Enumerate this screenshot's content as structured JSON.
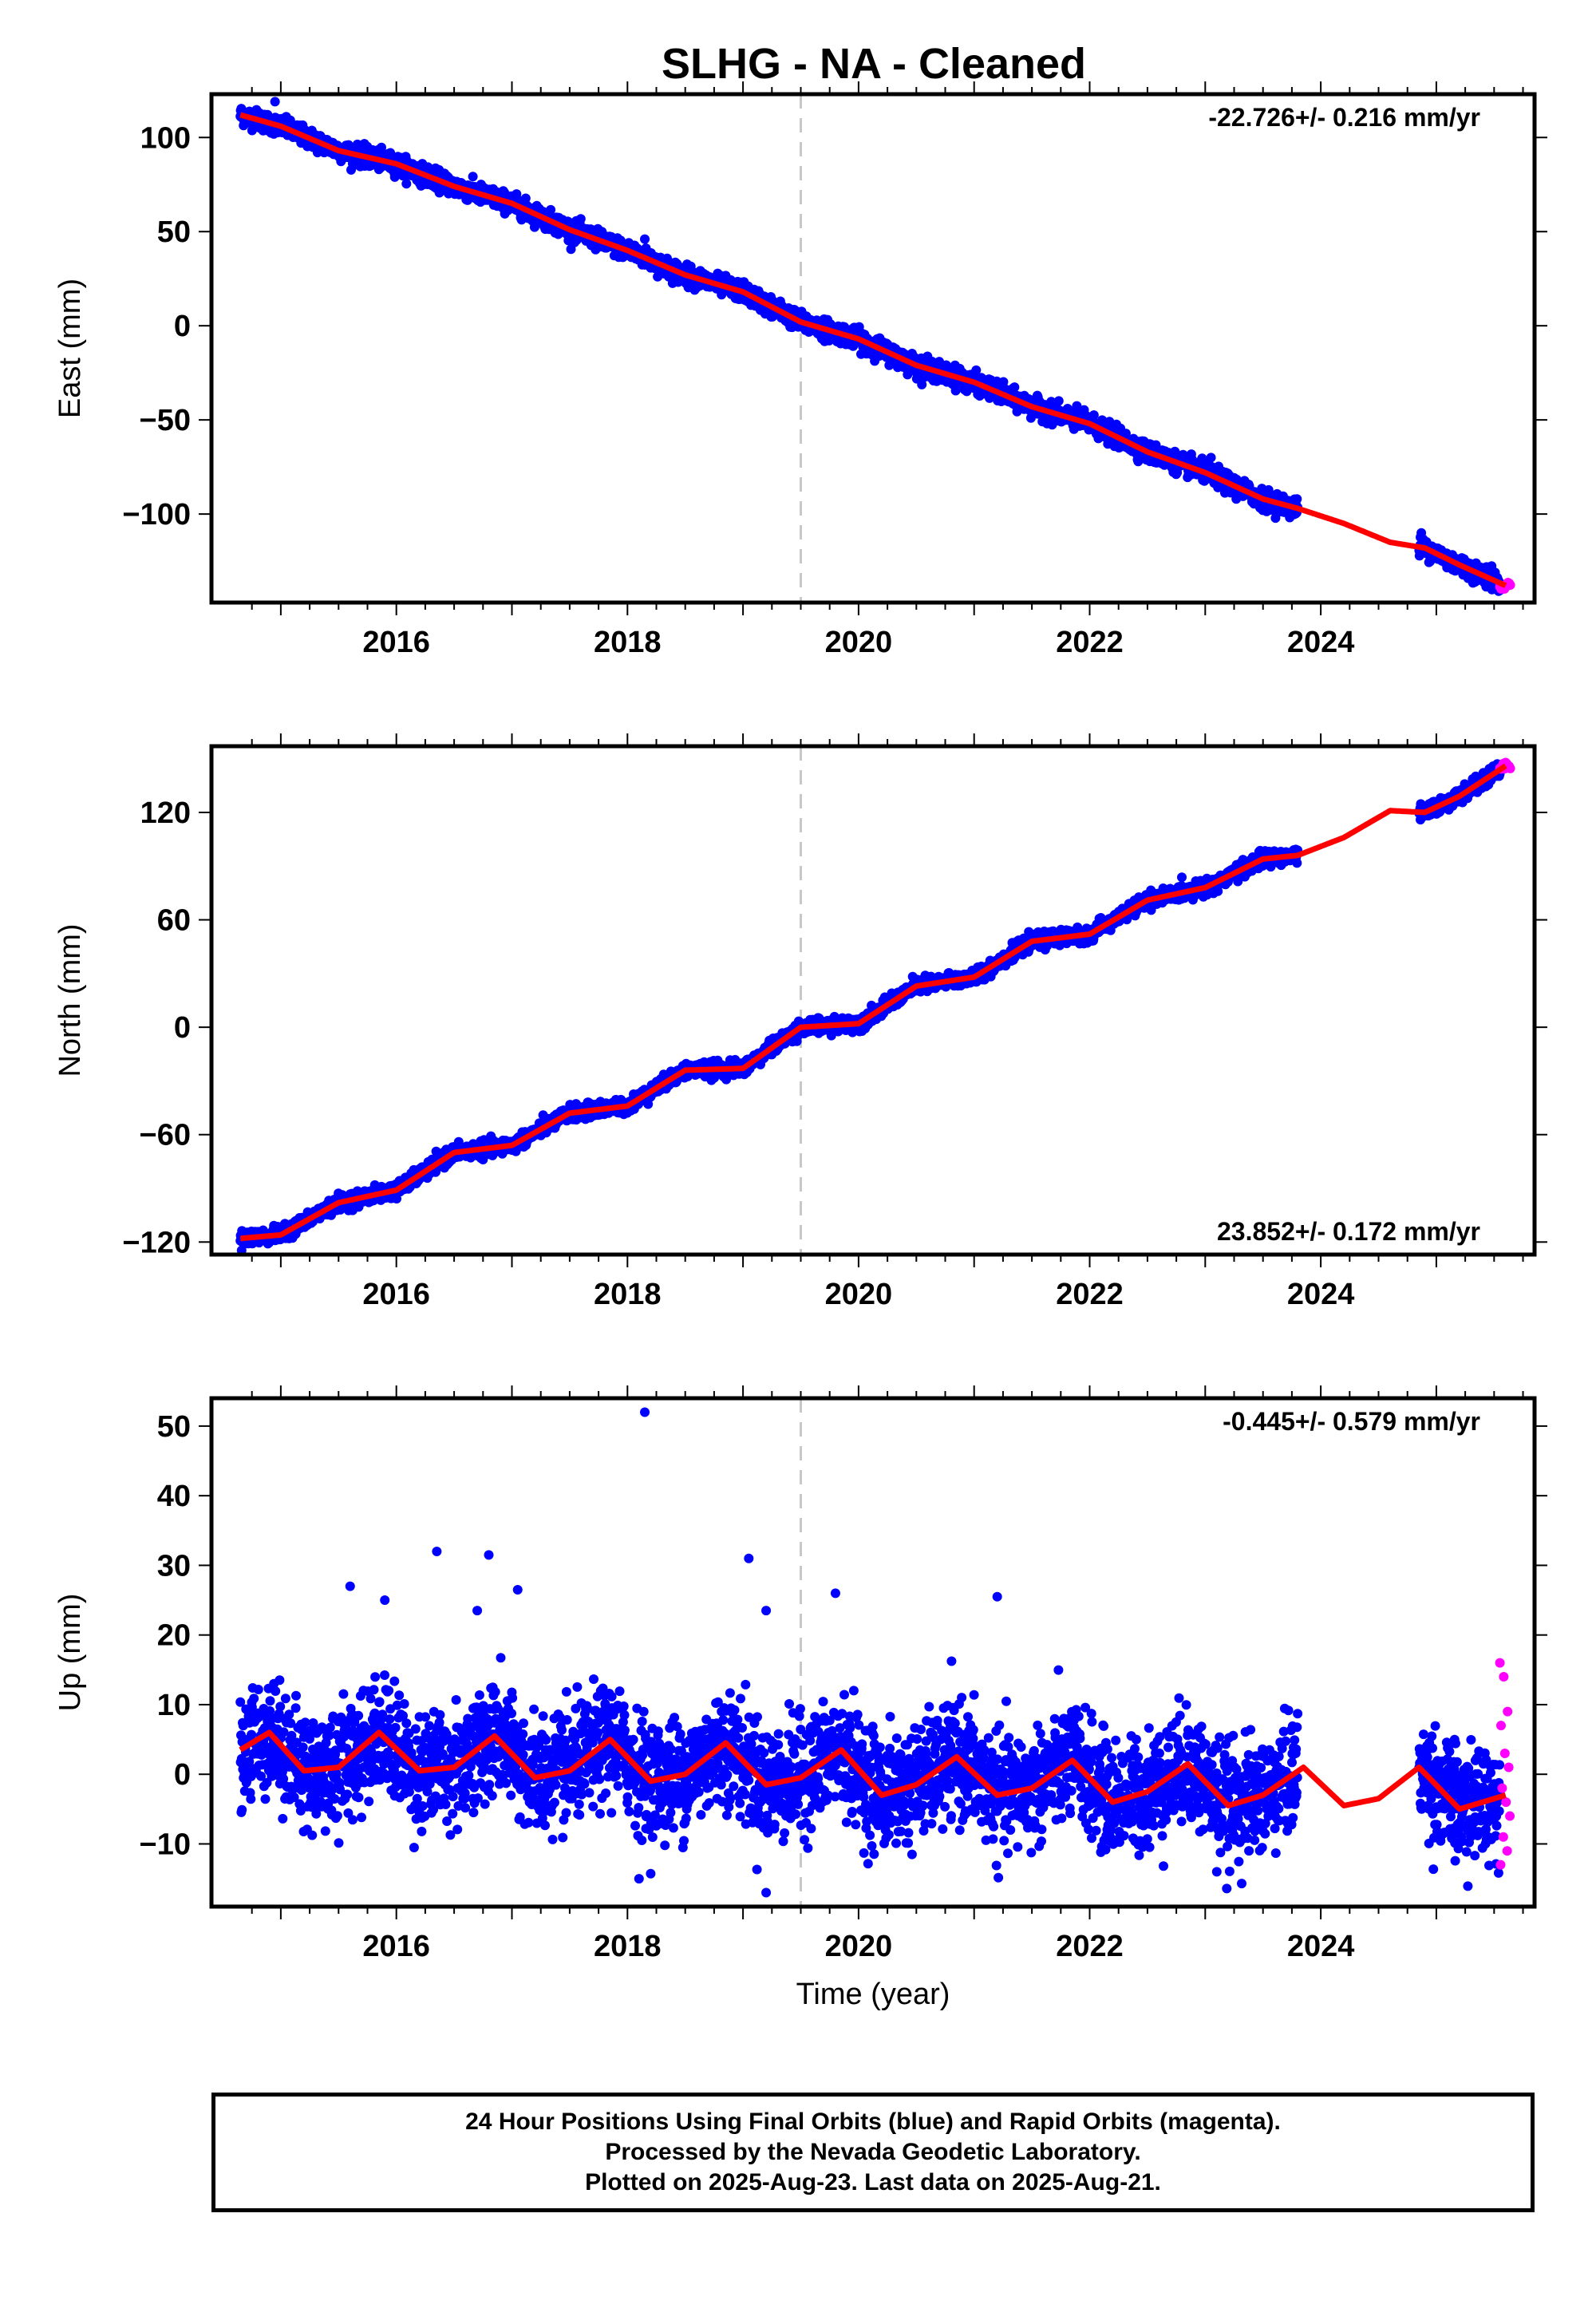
{
  "title": "SLHG  - NA - Cleaned",
  "colors": {
    "final_orbits": "#0000ff",
    "rapid_orbits": "#ff00ff",
    "model": "#ff0000",
    "event_line": "#c8c8c8",
    "frame": "#000000"
  },
  "chart_data": [
    {
      "type": "scatter",
      "panel": "east",
      "ylabel": "East (mm)",
      "xlabel": "",
      "rate_text": "-22.726+/- 0.216 mm/yr",
      "xlim": [
        2014.4,
        2025.85
      ],
      "ylim": [
        -147,
        123
      ],
      "xticks": [
        2016,
        2018,
        2020,
        2022,
        2024
      ],
      "xtick_labels": [
        "2016",
        "2018",
        "2020",
        "2022",
        "2024"
      ],
      "yticks": [
        100,
        50,
        0,
        -50,
        -100
      ],
      "ytick_labels": [
        "100",
        "50",
        "0",
        "−50",
        "−100"
      ],
      "event_line_x": 2019.5,
      "trend": {
        "rate": -22.726,
        "value_at_2019_5": 0
      },
      "seasonal": {
        "amplitude": 1.2,
        "peak_year_fraction": 0.3
      },
      "data_gap": [
        2023.8,
        2024.85
      ],
      "noise_sd": 2.5,
      "model_curve_x": [
        2014.65,
        2015.0,
        2015.5,
        2016.0,
        2016.5,
        2017.0,
        2017.5,
        2018.0,
        2018.5,
        2019.0,
        2019.5,
        2020.0,
        2020.5,
        2021.0,
        2021.5,
        2022.0,
        2022.5,
        2023.0,
        2023.5,
        2023.8,
        2024.2,
        2024.6,
        2024.9,
        2025.2,
        2025.6
      ],
      "model_curve_y": [
        112,
        106,
        93,
        86,
        74,
        65,
        51,
        40,
        27,
        18,
        2,
        -7,
        -21,
        -30,
        -43,
        -52,
        -67,
        -78,
        -92,
        -97,
        -105,
        -115,
        -118,
        -127,
        -138
      ],
      "rapid_orbits": {
        "x_start": 2025.55,
        "x_end": 2025.64,
        "y": -138
      },
      "outliers": [
        [
          2014.95,
          119
        ],
        [
          2018.15,
          46
        ],
        [
          2024.87,
          -110
        ],
        [
          2023.05,
          -70
        ]
      ]
    },
    {
      "type": "scatter",
      "panel": "north",
      "ylabel": "North (mm)",
      "xlabel": "",
      "rate_text": "23.852+/- 0.172 mm/yr",
      "xlim": [
        2014.4,
        2025.85
      ],
      "ylim": [
        -127,
        157
      ],
      "xticks": [
        2016,
        2018,
        2020,
        2022,
        2024
      ],
      "xtick_labels": [
        "2016",
        "2018",
        "2020",
        "2022",
        "2024"
      ],
      "yticks": [
        120,
        60,
        0,
        -60,
        -120
      ],
      "ytick_labels": [
        "120",
        "60",
        "0",
        "−60",
        "−120"
      ],
      "event_line_x": 2019.5,
      "trend": {
        "rate": 23.852,
        "value_at_2019_5": 0
      },
      "seasonal": {
        "amplitude": 3.0,
        "peak_year_fraction": 0.75
      },
      "data_gap": [
        2023.8,
        2024.85
      ],
      "noise_sd": 2.0,
      "model_curve_x": [
        2014.65,
        2015.0,
        2015.5,
        2016.0,
        2016.5,
        2017.0,
        2017.5,
        2018.0,
        2018.5,
        2019.0,
        2019.5,
        2020.0,
        2020.5,
        2021.0,
        2021.5,
        2022.0,
        2022.5,
        2023.0,
        2023.5,
        2023.8,
        2024.2,
        2024.6,
        2024.9,
        2025.2,
        2025.6
      ],
      "model_curve_y": [
        -118,
        -116,
        -98,
        -91,
        -70,
        -66,
        -48,
        -44,
        -24,
        -23,
        0,
        2,
        23,
        28,
        48,
        52,
        71,
        78,
        94,
        96,
        106,
        121,
        120,
        129,
        146
      ],
      "rapid_orbits": {
        "x_start": 2025.55,
        "x_end": 2025.64,
        "y": 146
      },
      "outliers": []
    },
    {
      "type": "scatter",
      "panel": "up",
      "ylabel": "Up (mm)",
      "xlabel": "Time (year)",
      "rate_text": "-0.445+/- 0.579 mm/yr",
      "xlim": [
        2014.4,
        2025.85
      ],
      "ylim": [
        -19,
        54
      ],
      "xticks": [
        2016,
        2018,
        2020,
        2022,
        2024
      ],
      "xtick_labels": [
        "2016",
        "2018",
        "2020",
        "2022",
        "2024"
      ],
      "yticks": [
        50,
        40,
        30,
        20,
        10,
        0,
        -10
      ],
      "ytick_labels": [
        "50",
        "40",
        "30",
        "20",
        "10",
        "0",
        "−10"
      ],
      "event_line_x": 2019.5,
      "trend": {
        "rate": -0.445,
        "value_at_2019_5": 0
      },
      "seasonal": {
        "amplitude": 3.5,
        "peak_year_fraction": 0.85
      },
      "data_gap": [
        2023.8,
        2024.85
      ],
      "noise_sd": 4.0,
      "model_curve_x": [
        2014.65,
        2014.9,
        2015.2,
        2015.5,
        2015.85,
        2016.2,
        2016.5,
        2016.85,
        2017.2,
        2017.5,
        2017.85,
        2018.2,
        2018.5,
        2018.85,
        2019.2,
        2019.5,
        2019.85,
        2020.2,
        2020.5,
        2020.85,
        2021.2,
        2021.5,
        2021.85,
        2022.2,
        2022.5,
        2022.85,
        2023.2,
        2023.5,
        2023.85,
        2024.2,
        2024.5,
        2024.85,
        2025.2,
        2025.6
      ],
      "model_curve_y": [
        3.5,
        6,
        0.5,
        1,
        6,
        0.5,
        1,
        5.5,
        -0.5,
        0.5,
        5,
        -1,
        0,
        4.5,
        -1.5,
        -0.5,
        3.5,
        -3,
        -1.5,
        2.5,
        -3,
        -2,
        2,
        -4,
        -2.5,
        1.5,
        -4.5,
        -3,
        1,
        -4.5,
        -3.5,
        1,
        -5,
        -3
      ],
      "rapid_orbits": {
        "x_start": 2025.55,
        "x_end": 2025.64,
        "values": [
          16,
          14,
          9,
          7,
          3,
          1,
          -2,
          -4,
          -6,
          -9,
          -11,
          -13
        ]
      },
      "outliers": [
        [
          2018.15,
          52
        ],
        [
          2016.35,
          32
        ],
        [
          2016.8,
          31.5
        ],
        [
          2019.05,
          31
        ],
        [
          2015.6,
          27
        ],
        [
          2017.05,
          26.5
        ],
        [
          2019.8,
          26
        ],
        [
          2021.2,
          25.5
        ],
        [
          2015.9,
          25
        ],
        [
          2016.7,
          23.5
        ],
        [
          2019.2,
          23.5
        ],
        [
          2018.1,
          -15
        ],
        [
          2019.2,
          -17
        ],
        [
          2023.1,
          -14
        ]
      ]
    }
  ],
  "footer": {
    "line1": "24 Hour Positions Using Final Orbits (blue) and Rapid Orbits (magenta).",
    "line2": "Processed by the Nevada Geodetic Laboratory.",
    "line3": "Plotted on 2025-Aug-23. Last data on 2025-Aug-21."
  }
}
